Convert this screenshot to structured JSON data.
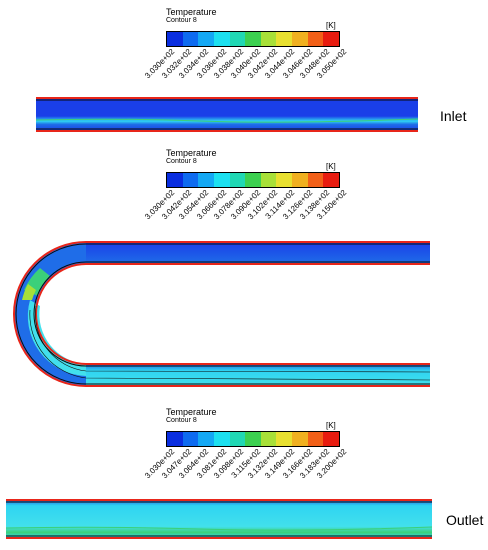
{
  "colors": [
    "#0a2ee0",
    "#0e6bf0",
    "#14a8f4",
    "#1ce0f0",
    "#20d8b4",
    "#3cd050",
    "#a8e038",
    "#e8e030",
    "#f0b020",
    "#f26018",
    "#e81c10"
  ],
  "field_colors": {
    "core": "#1a3fe8",
    "core_mid": "#1f6de8",
    "band_light": "#2fd4f2",
    "band_cyan": "#42e0ec",
    "green": "#3bd07a",
    "wall_hot": "#e8261a",
    "wall_dark": "#0a0a0a"
  },
  "legends": [
    {
      "title": "Temperature",
      "subtitle": "Contour 8",
      "unit": "[K]",
      "ticks": [
        "3.030e+02",
        "3.032e+02",
        "3.034e+02",
        "3.036e+02",
        "3.038e+02",
        "3.040e+02",
        "3.042e+02",
        "3.044e+02",
        "3.046e+02",
        "3.048e+02",
        "3.050e+02"
      ]
    },
    {
      "title": "Temperature",
      "subtitle": "Contour 8",
      "unit": "[K]",
      "ticks": [
        "3.030e+02",
        "3.042e+02",
        "3.054e+02",
        "3.066e+02",
        "3.078e+02",
        "3.090e+02",
        "3.102e+02",
        "3.114e+02",
        "3.126e+02",
        "3.138e+02",
        "3.150e+02"
      ]
    },
    {
      "title": "Temperature",
      "subtitle": "Contour 8",
      "unit": "[K]",
      "ticks": [
        "3.030e+02",
        "3.047e+02",
        "3.064e+02",
        "3.081e+02",
        "3.098e+02",
        "3.115e+02",
        "3.132e+02",
        "3.149e+02",
        "3.166e+02",
        "3.183e+02",
        "3.200e+02"
      ]
    }
  ],
  "labels": {
    "inlet": "Inlet",
    "outlet": "Outlet"
  }
}
